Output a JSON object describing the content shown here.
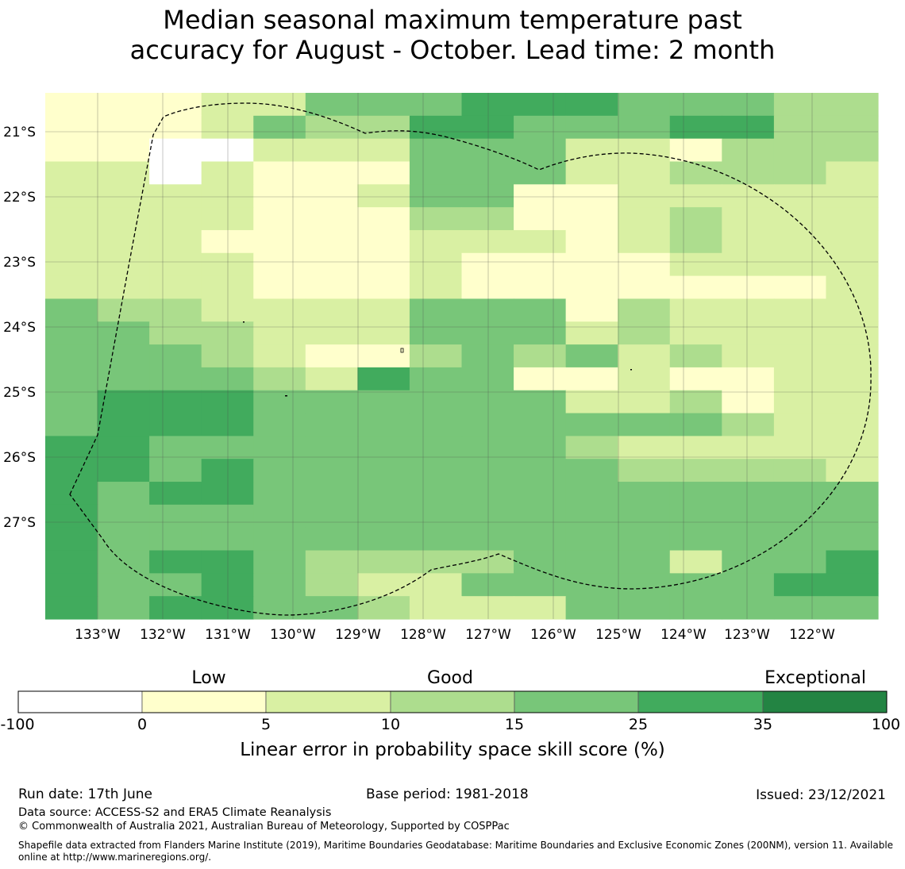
{
  "title": {
    "line1": "Median seasonal maximum temperature past",
    "line2": "accuracy for August - October. Lead time: 2 month"
  },
  "map": {
    "lat_labels": [
      "21°S",
      "22°S",
      "23°S",
      "24°S",
      "25°S",
      "26°S",
      "27°S"
    ],
    "lon_labels": [
      "133°W",
      "132°W",
      "131°W",
      "130°W",
      "129°W",
      "128°W",
      "127°W",
      "126°W",
      "125°W",
      "124°W",
      "123°W",
      "122°W"
    ],
    "grid_categories": [
      "1112244455544433",
      "1112433554445533",
      "1100222444221333",
      "2202111444223332",
      "2222112441122222",
      "2222111331123222",
      "2221111222123222",
      "2222111211112222",
      "2222111211111112",
      "4332222444132222",
      "4433222444232222",
      "4443211343423222",
      "4444325441121122",
      "4555444444223122",
      "4555444444444322",
      "5544444444322222",
      "5545444444433332",
      "5455444444444444",
      "5444444444444444",
      "5444444444444444",
      "5455433334442445",
      "5445432244444455",
      "5455443222444444"
    ],
    "category_colors": [
      "#ffffff",
      "#ffffcc",
      "#d9f0a3",
      "#addd8e",
      "#78c679",
      "#41ab5d",
      "#238443"
    ],
    "grid_line_color": "#4d4d4d",
    "boundary_color": "#000000"
  },
  "colorbar": {
    "headings": [
      "Low",
      "Good",
      "Exceptional"
    ],
    "ticks": [
      "-100",
      "0",
      "5",
      "10",
      "15",
      "25",
      "35",
      "100"
    ],
    "label": "Linear error in probability space skill score (%)"
  },
  "footer": {
    "run_date": "Run date: 17th June",
    "base_period": "Base period: 1981-2018",
    "issued": "Issued: 23/12/2021",
    "data_source": "Data source: ACCESS-S2 and ERA5 Climate Reanalysis",
    "copyright": "© Commonwealth of Australia 2021, Australian Bureau of Meteorology, Supported by COSPPac",
    "shapefile_note": "Shapefile data extracted from Flanders Marine Institute (2019), Maritime Boundaries Geodatabase: Maritime Boundaries and Exclusive Economic Zones (200NM), version 11. Available online at http://www.marineregions.org/."
  }
}
